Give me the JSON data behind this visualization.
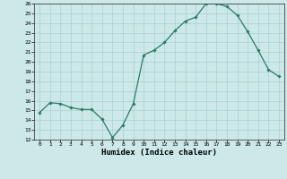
{
  "x": [
    0,
    1,
    2,
    3,
    4,
    5,
    6,
    7,
    8,
    9,
    10,
    11,
    12,
    13,
    14,
    15,
    16,
    17,
    18,
    19,
    20,
    21,
    22,
    23
  ],
  "y": [
    14.8,
    15.8,
    15.7,
    15.3,
    15.1,
    15.1,
    14.1,
    12.2,
    13.5,
    15.7,
    20.7,
    21.2,
    22.0,
    23.2,
    24.2,
    24.6,
    26.0,
    26.0,
    25.7,
    24.8,
    23.1,
    21.2,
    19.2,
    18.5
  ],
  "line_color": "#2a7a68",
  "marker_color": "#2a7a68",
  "bg_color": "#cce8e8",
  "grid_color": "#aad0d0",
  "xlabel": "Humidex (Indice chaleur)",
  "ylim": [
    12,
    26
  ],
  "xlim": [
    -0.5,
    23.5
  ],
  "yticks": [
    12,
    13,
    14,
    15,
    16,
    17,
    18,
    19,
    20,
    21,
    22,
    23,
    24,
    25,
    26
  ],
  "xticks": [
    0,
    1,
    2,
    3,
    4,
    5,
    6,
    7,
    8,
    9,
    10,
    11,
    12,
    13,
    14,
    15,
    16,
    17,
    18,
    19,
    20,
    21,
    22,
    23
  ]
}
